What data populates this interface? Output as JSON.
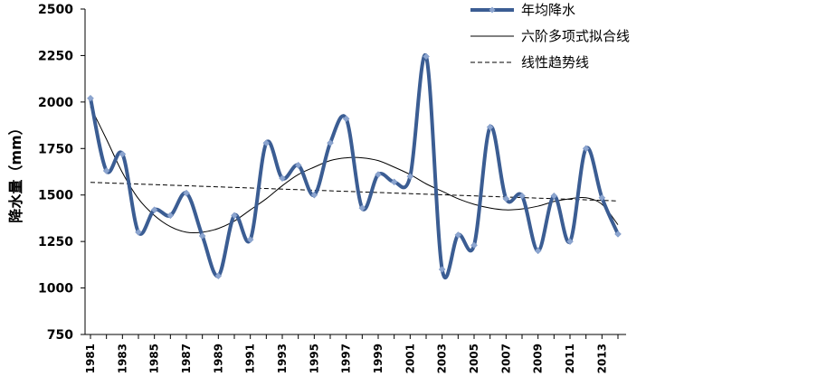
{
  "chart_data": {
    "type": "line",
    "ylabel": "降水量（mm）",
    "xlabel": "",
    "ylim": [
      750,
      2500
    ],
    "y_ticks": [
      750,
      1000,
      1250,
      1500,
      1750,
      2000,
      2250,
      2500
    ],
    "x_range": [
      1981,
      2014
    ],
    "x_tick_labels": [
      "1981",
      "1983",
      "1985",
      "1987",
      "1989",
      "1991",
      "1993",
      "1995",
      "1997",
      "1999",
      "2001",
      "2003",
      "2005",
      "2007",
      "2009",
      "2011",
      "2013"
    ],
    "legend_position": "top-right",
    "grid": false,
    "series": [
      {
        "name": "年均降水",
        "style": "smooth line with diamond markers",
        "color": "#3B5D93",
        "marker_color": "#8CA5CF",
        "x": [
          1981,
          1982,
          1983,
          1984,
          1985,
          1986,
          1987,
          1988,
          1989,
          1990,
          1991,
          1992,
          1993,
          1994,
          1995,
          1996,
          1997,
          1998,
          1999,
          2000,
          2001,
          2002,
          2003,
          2004,
          2005,
          2006,
          2007,
          2008,
          2009,
          2010,
          2011,
          2012,
          2013,
          2014
        ],
        "values": [
          2020,
          1630,
          1720,
          1300,
          1420,
          1390,
          1510,
          1280,
          1065,
          1390,
          1260,
          1780,
          1590,
          1660,
          1500,
          1780,
          1910,
          1430,
          1610,
          1570,
          1600,
          2245,
          1100,
          1285,
          1230,
          1865,
          1480,
          1495,
          1200,
          1495,
          1250,
          1750,
          1485,
          1290
        ]
      },
      {
        "name": "六阶多项式拟合线",
        "style": "thin solid black",
        "color": "#000000",
        "x": [
          1981,
          1982,
          1983,
          1984,
          1985,
          1986,
          1987,
          1988,
          1989,
          1990,
          1991,
          1992,
          1993,
          1994,
          1995,
          1996,
          1997,
          1998,
          1999,
          2000,
          2001,
          2002,
          2003,
          2004,
          2005,
          2006,
          2007,
          2008,
          2009,
          2010,
          2011,
          2012,
          2013,
          2014
        ],
        "values": [
          1975,
          1800,
          1620,
          1480,
          1390,
          1330,
          1300,
          1300,
          1320,
          1360,
          1420,
          1480,
          1550,
          1610,
          1650,
          1685,
          1700,
          1700,
          1685,
          1650,
          1610,
          1560,
          1520,
          1480,
          1450,
          1430,
          1420,
          1425,
          1440,
          1465,
          1480,
          1485,
          1450,
          1340
        ]
      },
      {
        "name": "线性趋势线",
        "style": "dashed black",
        "color": "#000000",
        "x": [
          1981,
          2014
        ],
        "values": [
          1568,
          1468
        ]
      }
    ]
  }
}
